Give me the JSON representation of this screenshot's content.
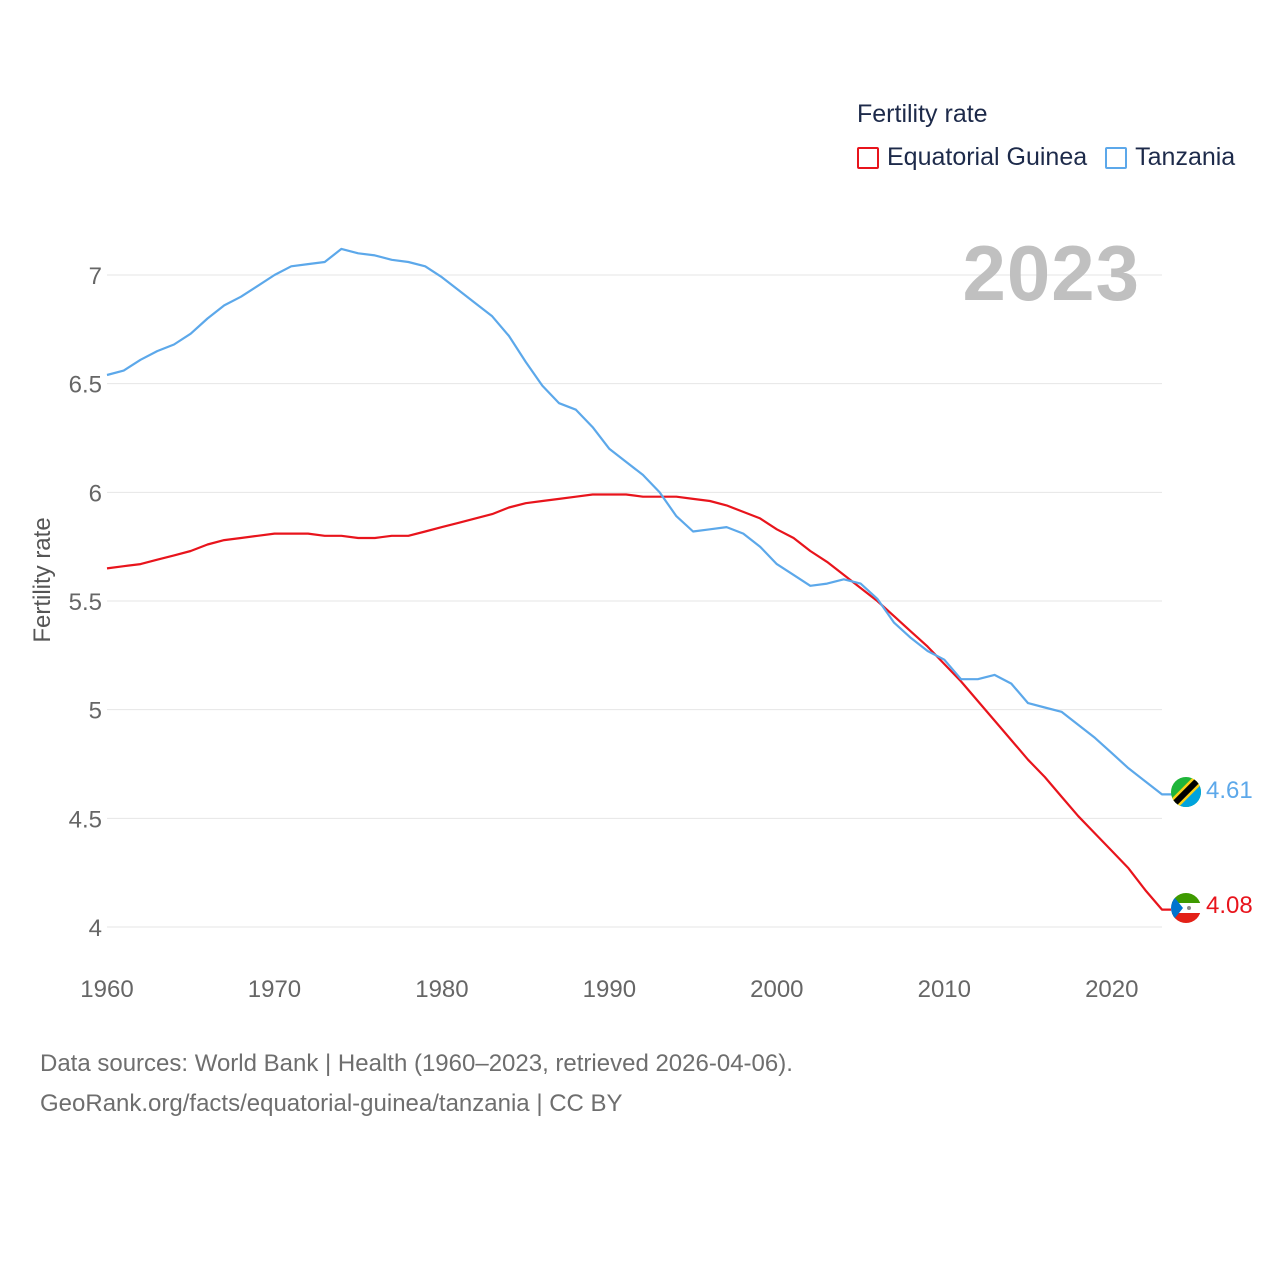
{
  "legend": {
    "title": "Fertility rate",
    "items": [
      {
        "label": "Equatorial Guinea",
        "color": "#e8141c"
      },
      {
        "label": "Tanzania",
        "color": "#5ca8ea"
      }
    ]
  },
  "year_label": "2023",
  "footer": {
    "line1": "Data sources: World Bank | Health (1960–2023, retrieved 2026-04-06).",
    "line2": "GeoRank.org/facts/equatorial-guinea/tanzania | CC BY"
  },
  "chart_data": {
    "type": "line",
    "title": "",
    "xlabel": "",
    "ylabel": "Fertility rate",
    "xlim": [
      1960,
      2023
    ],
    "ylim": [
      3.85,
      7.2
    ],
    "yticks": [
      4,
      4.5,
      5,
      5.5,
      6,
      6.5,
      7
    ],
    "ytick_labels": [
      "4",
      "4.5",
      "5",
      "5.5",
      "6",
      "6.5",
      "7"
    ],
    "xticks": [
      1960,
      1970,
      1980,
      1990,
      2000,
      2010,
      2020
    ],
    "xtick_labels": [
      "1960",
      "1970",
      "1980",
      "1990",
      "2000",
      "2010",
      "2020"
    ],
    "grid": true,
    "x": [
      1960,
      1961,
      1962,
      1963,
      1964,
      1965,
      1966,
      1967,
      1968,
      1969,
      1970,
      1971,
      1972,
      1973,
      1974,
      1975,
      1976,
      1977,
      1978,
      1979,
      1980,
      1981,
      1982,
      1983,
      1984,
      1985,
      1986,
      1987,
      1988,
      1989,
      1990,
      1991,
      1992,
      1993,
      1994,
      1995,
      1996,
      1997,
      1998,
      1999,
      2000,
      2001,
      2002,
      2003,
      2004,
      2005,
      2006,
      2007,
      2008,
      2009,
      2010,
      2011,
      2012,
      2013,
      2014,
      2015,
      2016,
      2017,
      2018,
      2019,
      2020,
      2021,
      2022,
      2023
    ],
    "series": [
      {
        "name": "Equatorial Guinea",
        "color": "#e8141c",
        "end_label": "4.08",
        "values": [
          5.65,
          5.66,
          5.67,
          5.69,
          5.71,
          5.73,
          5.76,
          5.78,
          5.79,
          5.8,
          5.81,
          5.81,
          5.81,
          5.8,
          5.8,
          5.79,
          5.79,
          5.8,
          5.8,
          5.82,
          5.84,
          5.86,
          5.88,
          5.9,
          5.93,
          5.95,
          5.96,
          5.97,
          5.98,
          5.99,
          5.99,
          5.99,
          5.98,
          5.98,
          5.98,
          5.97,
          5.96,
          5.94,
          5.91,
          5.88,
          5.83,
          5.79,
          5.73,
          5.68,
          5.62,
          5.56,
          5.5,
          5.43,
          5.36,
          5.29,
          5.21,
          5.13,
          5.04,
          4.95,
          4.86,
          4.77,
          4.69,
          4.6,
          4.51,
          4.43,
          4.35,
          4.27,
          4.17,
          4.08
        ]
      },
      {
        "name": "Tanzania",
        "color": "#5ca8ea",
        "end_label": "4.61",
        "values": [
          6.54,
          6.56,
          6.61,
          6.65,
          6.68,
          6.73,
          6.8,
          6.86,
          6.9,
          6.95,
          7.0,
          7.04,
          7.05,
          7.06,
          7.12,
          7.1,
          7.09,
          7.07,
          7.06,
          7.04,
          6.99,
          6.93,
          6.87,
          6.81,
          6.72,
          6.6,
          6.49,
          6.41,
          6.38,
          6.3,
          6.2,
          6.14,
          6.08,
          6.0,
          5.89,
          5.82,
          5.83,
          5.84,
          5.81,
          5.75,
          5.67,
          5.62,
          5.57,
          5.58,
          5.6,
          5.58,
          5.51,
          5.4,
          5.33,
          5.27,
          5.23,
          5.14,
          5.14,
          5.16,
          5.12,
          5.03,
          5.01,
          4.99,
          4.93,
          4.87,
          4.8,
          4.73,
          4.67,
          4.61
        ]
      }
    ]
  }
}
